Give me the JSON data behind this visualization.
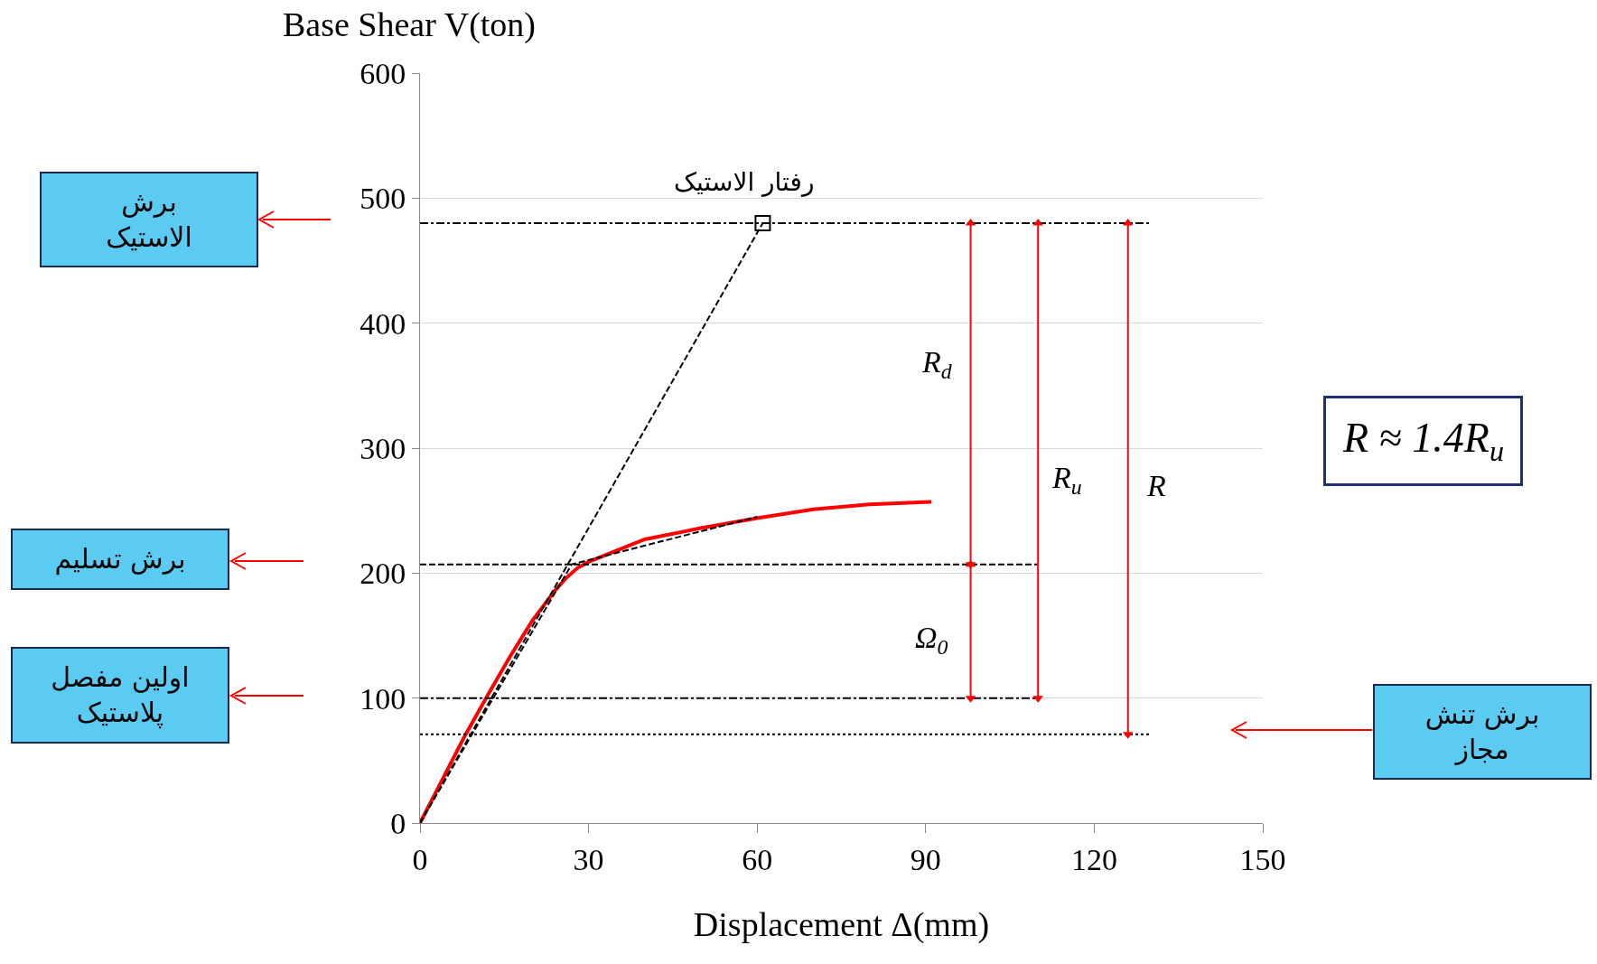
{
  "chart_data": {
    "type": "line",
    "xlabel": "Displacement Δ(mm)",
    "ylabel": "Base Shear V(ton)",
    "xlim": [
      0,
      150
    ],
    "xticks": [
      0,
      30,
      60,
      90,
      120,
      150
    ],
    "ylim": [
      0,
      600
    ],
    "yticks": [
      0,
      100,
      200,
      300,
      400,
      500,
      600
    ],
    "grid": "y",
    "series": [
      {
        "color": "#ff0000",
        "line_style": "solid",
        "x": [
          0,
          4,
          8,
          12,
          16,
          20,
          24,
          26,
          28,
          30,
          35,
          40,
          50,
          60,
          70,
          80,
          91
        ],
        "values": [
          0,
          35,
          70,
          102,
          133,
          162,
          186,
          196,
          204,
          209,
          218,
          227,
          236,
          244,
          251,
          255,
          257
        ]
      },
      {
        "color": "#000000",
        "line_style": "dashed",
        "x": [
          0,
          61
        ],
        "values": [
          0,
          480
        ]
      },
      {
        "type": "scatter",
        "color": "#000000",
        "marker": "square",
        "x": [
          61
        ],
        "values": [
          480
        ]
      },
      {
        "color": "#000000",
        "line_style": "dashed",
        "x": [
          0,
          27,
          60
        ],
        "values": [
          0,
          207,
          245
        ]
      },
      {
        "color": "#000000",
        "line_style": "dashdot",
        "x": [
          0,
          130
        ],
        "values": [
          480,
          480
        ]
      },
      {
        "color": "#000000",
        "line_style": "dashed",
        "x": [
          0,
          110
        ],
        "values": [
          207,
          207
        ]
      },
      {
        "color": "#000000",
        "line_style": "dashdot",
        "x": [
          0,
          110
        ],
        "values": [
          100,
          100
        ]
      },
      {
        "color": "#000000",
        "line_style": "dotted",
        "x": [
          0,
          130
        ],
        "values": [
          71,
          71
        ]
      },
      {
        "color": "#ff0000",
        "line_style": "solid",
        "marker": "triangle",
        "x": [
          98,
          98
        ],
        "values": [
          207,
          480
        ]
      },
      {
        "color": "#ff0000",
        "line_style": "solid",
        "marker": "triangle",
        "x": [
          98,
          98
        ],
        "values": [
          100,
          207
        ]
      },
      {
        "color": "#ff0000",
        "line_style": "solid",
        "marker": "triangle",
        "x": [
          110,
          110
        ],
        "values": [
          100,
          480
        ]
      },
      {
        "color": "#ff0000",
        "line_style": "solid",
        "marker": "triangle",
        "x": [
          126,
          126
        ],
        "values": [
          71,
          480
        ]
      }
    ],
    "annotations": [
      "R ≈ 1.4R$_{u}$",
      "رفتار الاستیک",
      "R$_{d}$",
      "R$_{u}$",
      "R",
      "Ω$_{0}$",
      "برش\nالاستیک",
      "برش تسلیم",
      "اولین مفصل\nپلاستیک",
      "برش تنش\nمجاز"
    ]
  }
}
